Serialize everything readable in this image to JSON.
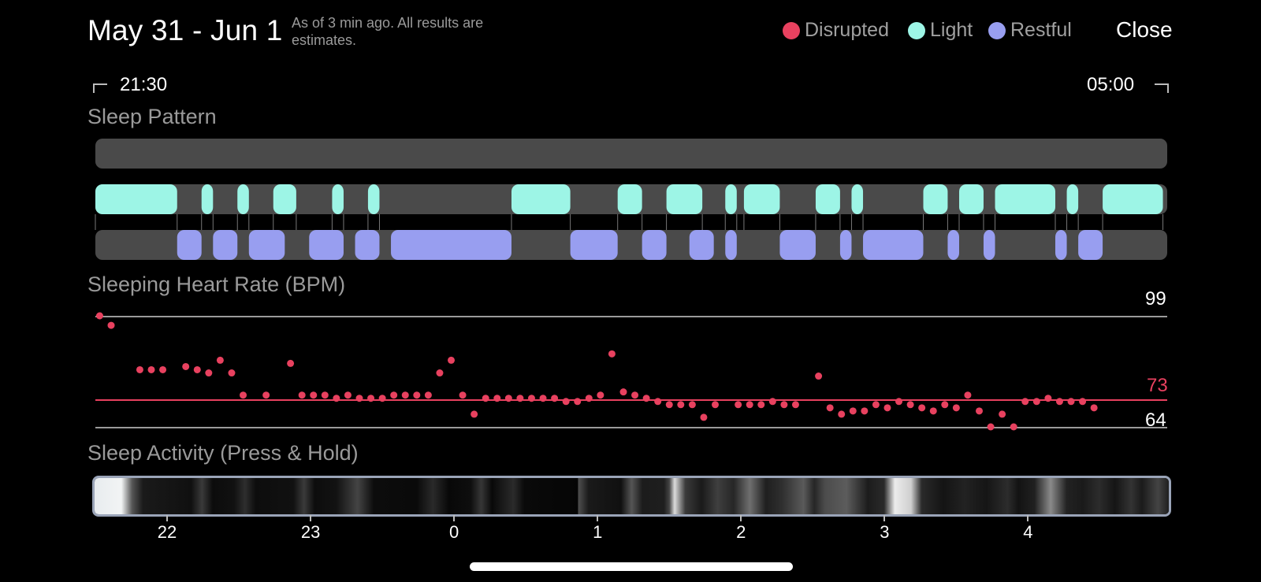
{
  "header": {
    "title": "May 31 - Jun 1",
    "subtitle": "As of 3 min ago. All results are estimates.",
    "close_label": "Close"
  },
  "legend": [
    {
      "label": "Disrupted",
      "color": "#e8415f"
    },
    {
      "label": "Light",
      "color": "#9df5e6"
    },
    {
      "label": "Restful",
      "color": "#989ef0"
    }
  ],
  "time_range": {
    "start": "21:30",
    "end": "05:00"
  },
  "sleep_pattern": {
    "title": "Sleep Pattern",
    "colors": {
      "track": "#4a4a4a",
      "light": "#9df5e6",
      "restful": "#989ef0"
    },
    "light_segments": [
      [
        21.5,
        22.07
      ],
      [
        22.24,
        22.32
      ],
      [
        22.49,
        22.57
      ],
      [
        22.74,
        22.9
      ],
      [
        23.15,
        23.23
      ],
      [
        23.4,
        23.48
      ],
      [
        0.4,
        0.81
      ],
      [
        1.14,
        1.31
      ],
      [
        1.48,
        1.73
      ],
      [
        1.89,
        1.97
      ],
      [
        2.02,
        2.27
      ],
      [
        2.52,
        2.69
      ],
      [
        2.77,
        2.85
      ],
      [
        3.27,
        3.44
      ],
      [
        3.52,
        3.69
      ],
      [
        3.77,
        4.19
      ],
      [
        4.27,
        4.35
      ],
      [
        4.52,
        4.94
      ]
    ],
    "restful_segments": [
      [
        22.07,
        22.24
      ],
      [
        22.32,
        22.49
      ],
      [
        22.57,
        22.82
      ],
      [
        22.99,
        23.23
      ],
      [
        23.31,
        23.48
      ],
      [
        23.56,
        0.4
      ],
      [
        0.81,
        1.14
      ],
      [
        1.31,
        1.48
      ],
      [
        1.64,
        1.81
      ],
      [
        1.89,
        1.97
      ],
      [
        2.27,
        2.52
      ],
      [
        2.69,
        2.77
      ],
      [
        2.85,
        3.27
      ],
      [
        3.44,
        3.52
      ],
      [
        3.69,
        3.77
      ],
      [
        4.19,
        4.27
      ],
      [
        4.35,
        4.52
      ]
    ]
  },
  "heart_rate": {
    "title": "Sleeping Heart Rate (BPM)",
    "max_label": "99",
    "avg_label": "73",
    "min_label": "64",
    "colors": {
      "point": "#e8415f",
      "avg_line": "#e8415f",
      "grid": "#9a9a9a"
    },
    "y_range": [
      64,
      99
    ],
    "points": [
      [
        21.53,
        99
      ],
      [
        21.61,
        96
      ],
      [
        21.81,
        82
      ],
      [
        21.89,
        82
      ],
      [
        21.97,
        82
      ],
      [
        22.13,
        83
      ],
      [
        22.21,
        82
      ],
      [
        22.29,
        81
      ],
      [
        22.37,
        85
      ],
      [
        22.45,
        81
      ],
      [
        22.53,
        74
      ],
      [
        22.69,
        74
      ],
      [
        22.86,
        84
      ],
      [
        22.94,
        74
      ],
      [
        23.02,
        74
      ],
      [
        23.1,
        74
      ],
      [
        23.18,
        73
      ],
      [
        23.26,
        74
      ],
      [
        23.34,
        73
      ],
      [
        23.42,
        73
      ],
      [
        23.5,
        73
      ],
      [
        23.58,
        74
      ],
      [
        23.66,
        74
      ],
      [
        23.74,
        74
      ],
      [
        23.82,
        74
      ],
      [
        23.9,
        81
      ],
      [
        23.98,
        85
      ],
      [
        0.06,
        74
      ],
      [
        0.14,
        68
      ],
      [
        0.22,
        73
      ],
      [
        0.3,
        73
      ],
      [
        0.38,
        73
      ],
      [
        0.46,
        73
      ],
      [
        0.54,
        73
      ],
      [
        0.62,
        73
      ],
      [
        0.7,
        73
      ],
      [
        0.78,
        72
      ],
      [
        0.86,
        72
      ],
      [
        0.94,
        73
      ],
      [
        1.02,
        74
      ],
      [
        1.1,
        87
      ],
      [
        1.18,
        75
      ],
      [
        1.26,
        74
      ],
      [
        1.34,
        73
      ],
      [
        1.42,
        72
      ],
      [
        1.5,
        71
      ],
      [
        1.58,
        71
      ],
      [
        1.66,
        71
      ],
      [
        1.74,
        67
      ],
      [
        1.82,
        71
      ],
      [
        1.98,
        71
      ],
      [
        2.06,
        71
      ],
      [
        2.14,
        71
      ],
      [
        2.22,
        72
      ],
      [
        2.3,
        71
      ],
      [
        2.38,
        71
      ],
      [
        2.54,
        80
      ],
      [
        2.62,
        70
      ],
      [
        2.7,
        68
      ],
      [
        2.78,
        69
      ],
      [
        2.86,
        69
      ],
      [
        2.94,
        71
      ],
      [
        3.02,
        70
      ],
      [
        3.1,
        72
      ],
      [
        3.18,
        71
      ],
      [
        3.26,
        70
      ],
      [
        3.34,
        69
      ],
      [
        3.42,
        71
      ],
      [
        3.5,
        70
      ],
      [
        3.58,
        74
      ],
      [
        3.66,
        69
      ],
      [
        3.74,
        64
      ],
      [
        3.82,
        68
      ],
      [
        3.9,
        64
      ],
      [
        3.98,
        72
      ],
      [
        4.06,
        72
      ],
      [
        4.14,
        73
      ],
      [
        4.22,
        72
      ],
      [
        4.3,
        72
      ],
      [
        4.38,
        72
      ],
      [
        4.46,
        70
      ]
    ]
  },
  "activity": {
    "title": "Sleep Activity (Press & Hold)",
    "ticks": [
      "22",
      "23",
      "0",
      "1",
      "2",
      "3",
      "4"
    ]
  }
}
